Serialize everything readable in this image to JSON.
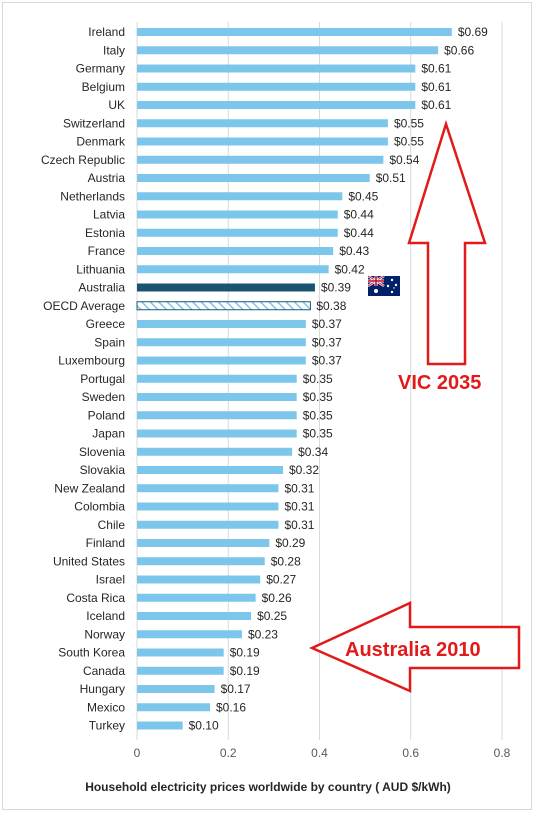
{
  "chart_data": {
    "type": "bar",
    "orientation": "horizontal",
    "xlabel": "Household electricity prices worldwide by country ( AUD $/kWh)",
    "xlim": [
      0,
      0.8
    ],
    "xticks": [
      "0",
      "0.2",
      "0.4",
      "0.6",
      "0.8"
    ],
    "grid": true,
    "value_prefix": "$",
    "categories": [
      "Ireland",
      "Italy",
      "Germany",
      "Belgium",
      "UK",
      "Switzerland",
      "Denmark",
      "Czech Republic",
      "Austria",
      "Netherlands",
      "Latvia",
      "Estonia",
      "France",
      "Lithuania",
      "Australia",
      "OECD Average",
      "Greece",
      "Spain",
      "Luxembourg",
      "Portugal",
      "Sweden",
      "Poland",
      "Japan",
      "Slovenia",
      "Slovakia",
      "New Zealand",
      "Colombia",
      "Chile",
      "Finland",
      "United States",
      "Israel",
      "Costa Rica",
      "Iceland",
      "Norway",
      "South Korea",
      "Canada",
      "Hungary",
      "Mexico",
      "Turkey"
    ],
    "values": [
      0.69,
      0.66,
      0.61,
      0.61,
      0.61,
      0.55,
      0.55,
      0.54,
      0.51,
      0.45,
      0.44,
      0.44,
      0.43,
      0.42,
      0.39,
      0.38,
      0.37,
      0.37,
      0.37,
      0.35,
      0.35,
      0.35,
      0.35,
      0.34,
      0.32,
      0.31,
      0.31,
      0.31,
      0.29,
      0.28,
      0.27,
      0.26,
      0.25,
      0.23,
      0.19,
      0.19,
      0.17,
      0.16,
      0.1
    ],
    "data_labels": [
      "$0.69",
      "$0.66",
      "$0.61",
      "$0.61",
      "$0.61",
      "$0.55",
      "$0.55",
      "$0.54",
      "$0.51",
      "$0.45",
      "$0.44",
      "$0.44",
      "$0.43",
      "$0.42",
      "$0.39",
      "$0.38",
      "$0.37",
      "$0.37",
      "$0.37",
      "$0.35",
      "$0.35",
      "$0.35",
      "$0.35",
      "$0.34",
      "$0.32",
      "$0.31",
      "$0.31",
      "$0.31",
      "$0.29",
      "$0.28",
      "$0.27",
      "$0.26",
      "$0.25",
      "$0.23",
      "$0.19",
      "$0.19",
      "$0.17",
      "$0.16",
      "$0.10"
    ],
    "highlight": {
      "Australia": "solid",
      "OECD Average": "hatched"
    },
    "annotations": [
      {
        "text": "VIC 2035",
        "points_to": "$0.69 level",
        "arrow": "up"
      },
      {
        "text": "Australia 2010",
        "points_to": "$0.23 level",
        "arrow": "left"
      }
    ]
  },
  "colors": {
    "bar": "#7cc6ec",
    "australia_bar": "#1b5470",
    "hatch": "#7cc6ec",
    "annotation": "#e21a1a",
    "grid": "#d9d9d9"
  },
  "icons": {
    "australia_flag": "australia-flag-icon"
  }
}
